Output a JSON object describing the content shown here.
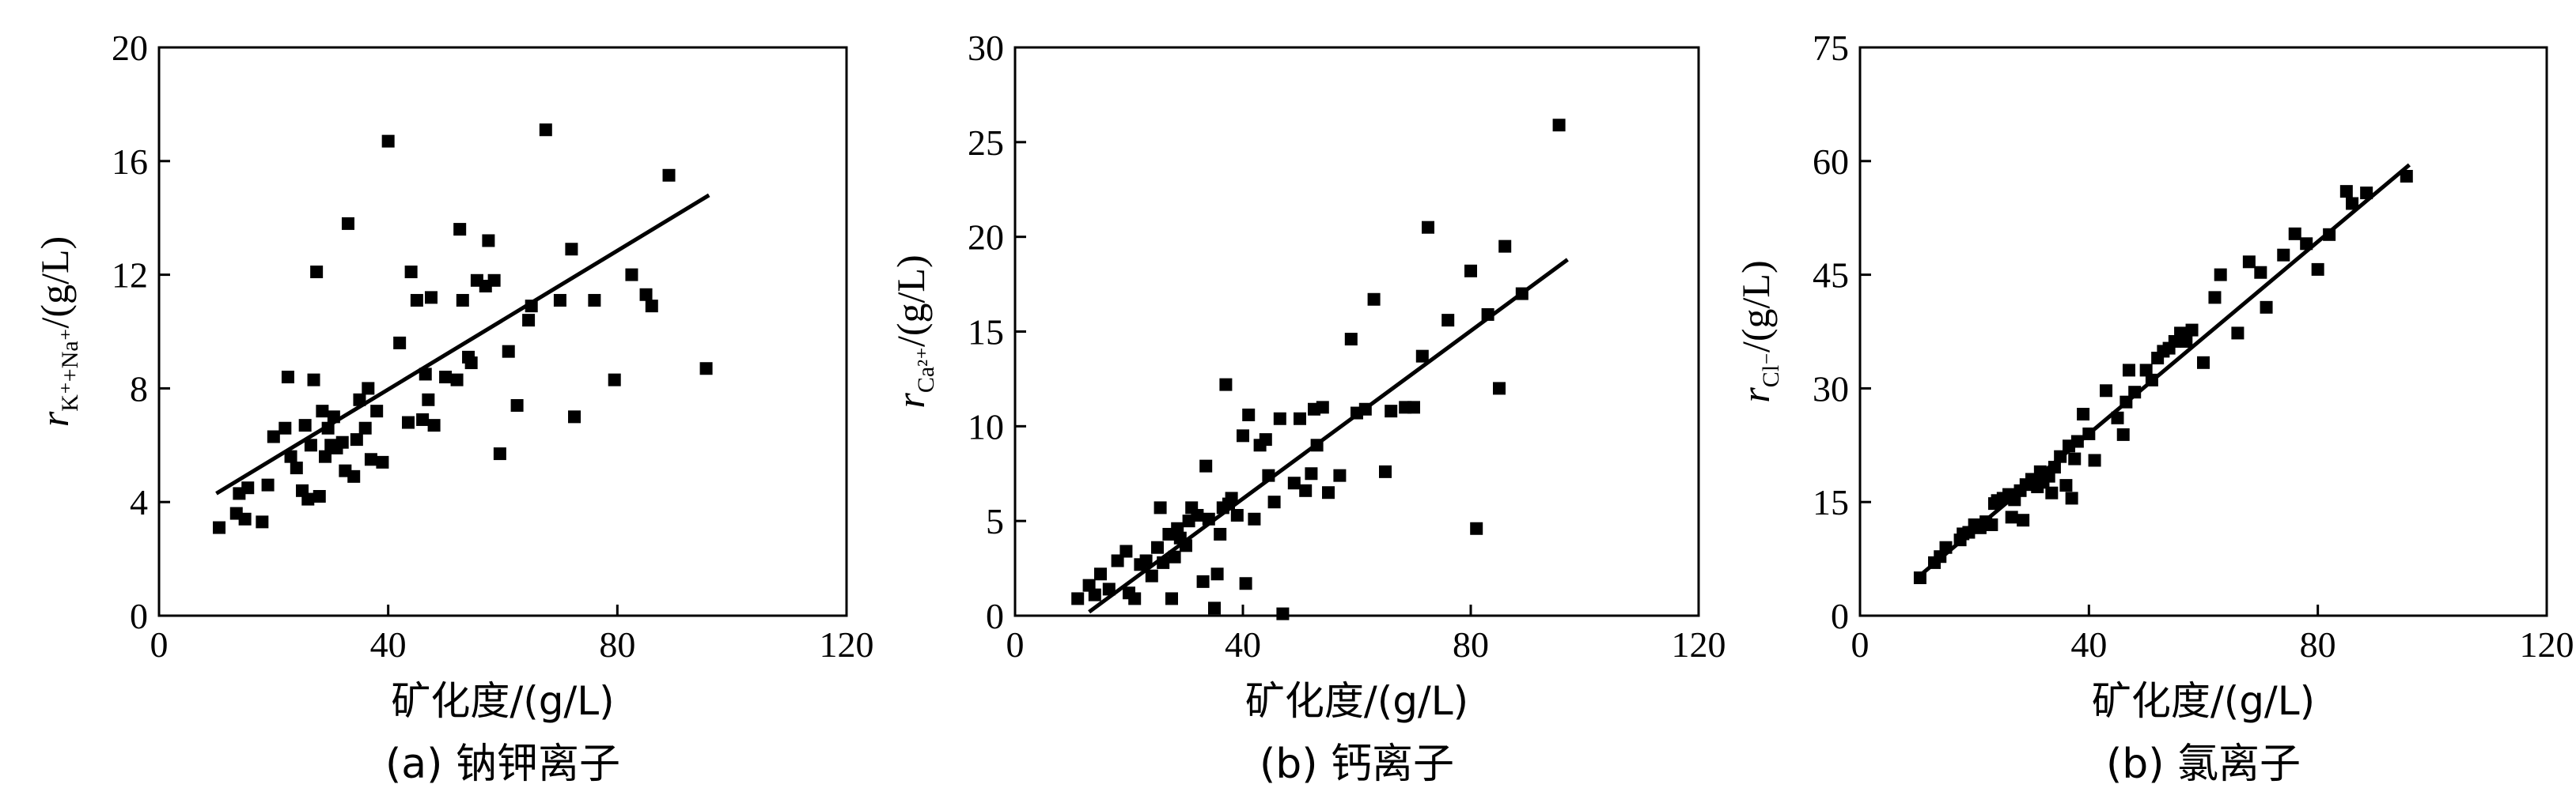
{
  "chart_data": [
    {
      "type": "scatter",
      "title": "",
      "caption": "(a) 钠钾离子",
      "xlabel": "矿化度/(g/L)",
      "ylabel": {
        "italic": "r",
        "subscript": "K⁺+Na⁺",
        "suffix": "/(g/L)"
      },
      "xlim": [
        0,
        120
      ],
      "ylim": [
        0,
        20
      ],
      "xticks": [
        "0",
        "40",
        "80",
        "120"
      ],
      "yticks": [
        "0",
        "4",
        "8",
        "12",
        "16",
        "20"
      ],
      "fit_line": [
        [
          10,
          4.3
        ],
        [
          96,
          14.8
        ]
      ],
      "points": [
        [
          10.5,
          3.1
        ],
        [
          13.5,
          3.6
        ],
        [
          14,
          4.3
        ],
        [
          15,
          3.4
        ],
        [
          15.5,
          4.5
        ],
        [
          18,
          3.3
        ],
        [
          19,
          4.6
        ],
        [
          20,
          6.3
        ],
        [
          22,
          6.6
        ],
        [
          22.5,
          8.4
        ],
        [
          23,
          5.6
        ],
        [
          24,
          5.2
        ],
        [
          25,
          4.4
        ],
        [
          25.5,
          6.7
        ],
        [
          26,
          4.1
        ],
        [
          26.5,
          6.0
        ],
        [
          27,
          8.3
        ],
        [
          27.5,
          12.1
        ],
        [
          28,
          4.2
        ],
        [
          28.5,
          7.2
        ],
        [
          29,
          5.6
        ],
        [
          29.5,
          6.6
        ],
        [
          30,
          6.0
        ],
        [
          30.5,
          7.0
        ],
        [
          31,
          5.9
        ],
        [
          32,
          6.1
        ],
        [
          32.5,
          5.1
        ],
        [
          33,
          13.8
        ],
        [
          34,
          4.9
        ],
        [
          34.5,
          6.2
        ],
        [
          35,
          7.6
        ],
        [
          36,
          6.6
        ],
        [
          36.5,
          8.0
        ],
        [
          37,
          5.5
        ],
        [
          38,
          7.2
        ],
        [
          39,
          5.4
        ],
        [
          40,
          16.7
        ],
        [
          42,
          9.6
        ],
        [
          43.5,
          6.8
        ],
        [
          44,
          12.1
        ],
        [
          45,
          11.1
        ],
        [
          46,
          6.9
        ],
        [
          46.5,
          8.5
        ],
        [
          47,
          7.6
        ],
        [
          47.5,
          11.2
        ],
        [
          48,
          6.7
        ],
        [
          50,
          8.4
        ],
        [
          52,
          8.3
        ],
        [
          52.5,
          13.6
        ],
        [
          53,
          11.1
        ],
        [
          54,
          9.1
        ],
        [
          54.5,
          8.9
        ],
        [
          55.5,
          11.8
        ],
        [
          57,
          11.6
        ],
        [
          57.5,
          13.2
        ],
        [
          58.5,
          11.8
        ],
        [
          59.5,
          5.7
        ],
        [
          61,
          9.3
        ],
        [
          62.5,
          7.4
        ],
        [
          64.5,
          10.4
        ],
        [
          65,
          10.9
        ],
        [
          67.5,
          17.1
        ],
        [
          70,
          11.1
        ],
        [
          72,
          12.9
        ],
        [
          72.5,
          7.0
        ],
        [
          76,
          11.1
        ],
        [
          79.5,
          8.3
        ],
        [
          82.5,
          12.0
        ],
        [
          85,
          11.3
        ],
        [
          86,
          10.9
        ],
        [
          89,
          15.5
        ],
        [
          95.5,
          8.7
        ]
      ]
    },
    {
      "type": "scatter",
      "title": "",
      "caption": "(b) 钙离子",
      "xlabel": "矿化度/(g/L)",
      "ylabel": {
        "italic": "r",
        "subscript": "Ca²⁺",
        "suffix": "/(g/L)"
      },
      "xlim": [
        0,
        120
      ],
      "ylim": [
        0,
        30
      ],
      "xticks": [
        "0",
        "40",
        "80",
        "120"
      ],
      "yticks": [
        "0",
        "5",
        "10",
        "15",
        "20",
        "25",
        "30"
      ],
      "fit_line": [
        [
          13,
          0.2
        ],
        [
          97,
          18.8
        ]
      ],
      "points": [
        [
          11,
          0.9
        ],
        [
          13,
          1.6
        ],
        [
          14,
          1.1
        ],
        [
          15,
          2.2
        ],
        [
          16.5,
          1.4
        ],
        [
          18,
          2.9
        ],
        [
          19.5,
          3.4
        ],
        [
          20,
          1.2
        ],
        [
          21,
          0.9
        ],
        [
          22,
          2.7
        ],
        [
          23,
          2.9
        ],
        [
          24,
          2.1
        ],
        [
          25,
          3.6
        ],
        [
          25.5,
          5.7
        ],
        [
          26,
          2.8
        ],
        [
          27,
          4.3
        ],
        [
          27.5,
          0.9
        ],
        [
          28,
          3.1
        ],
        [
          28.5,
          4.6
        ],
        [
          29,
          4.1
        ],
        [
          30,
          3.7
        ],
        [
          30.5,
          5.0
        ],
        [
          31,
          5.7
        ],
        [
          32,
          5.3
        ],
        [
          33,
          1.8
        ],
        [
          33.5,
          7.9
        ],
        [
          34,
          5.1
        ],
        [
          35,
          0.4
        ],
        [
          35.5,
          2.2
        ],
        [
          36,
          4.3
        ],
        [
          36.5,
          5.7
        ],
        [
          37,
          12.2
        ],
        [
          37.5,
          5.9
        ],
        [
          38,
          6.2
        ],
        [
          39,
          5.3
        ],
        [
          40,
          9.5
        ],
        [
          40.5,
          1.7
        ],
        [
          41,
          10.6
        ],
        [
          42,
          5.1
        ],
        [
          43,
          9.0
        ],
        [
          44,
          9.3
        ],
        [
          44.5,
          7.4
        ],
        [
          45.5,
          6.0
        ],
        [
          46.5,
          10.4
        ],
        [
          47,
          0.1
        ],
        [
          49,
          7.0
        ],
        [
          50,
          10.4
        ],
        [
          51,
          6.6
        ],
        [
          52,
          7.5
        ],
        [
          52.5,
          10.9
        ],
        [
          53,
          9.0
        ],
        [
          54,
          11.0
        ],
        [
          55,
          6.5
        ],
        [
          57,
          7.4
        ],
        [
          59,
          14.6
        ],
        [
          60,
          10.7
        ],
        [
          61.5,
          10.9
        ],
        [
          63,
          16.7
        ],
        [
          65,
          7.6
        ],
        [
          66,
          10.8
        ],
        [
          68.5,
          11.0
        ],
        [
          70,
          11.0
        ],
        [
          71.5,
          13.7
        ],
        [
          72.5,
          20.5
        ],
        [
          76,
          15.6
        ],
        [
          80,
          18.2
        ],
        [
          81,
          4.6
        ],
        [
          83,
          15.9
        ],
        [
          85,
          12.0
        ],
        [
          86,
          19.5
        ],
        [
          89,
          17.0
        ],
        [
          95.5,
          25.9
        ]
      ]
    },
    {
      "type": "scatter",
      "title": "",
      "caption": "(b) 氯离子",
      "xlabel": "矿化度/(g/L)",
      "ylabel": {
        "italic": "r",
        "subscript": "Cl⁻",
        "suffix": "/(g/L)"
      },
      "xlim": [
        0,
        120
      ],
      "ylim": [
        0,
        75
      ],
      "xticks": [
        "0",
        "40",
        "80",
        "120"
      ],
      "yticks": [
        "0",
        "15",
        "30",
        "45",
        "60",
        "75"
      ],
      "fit_line": [
        [
          10,
          5.0
        ],
        [
          96,
          59.5
        ]
      ],
      "points": [
        [
          10.5,
          5.0
        ],
        [
          13,
          7.0
        ],
        [
          14,
          7.8
        ],
        [
          15,
          9.0
        ],
        [
          17.5,
          10.0
        ],
        [
          18,
          10.8
        ],
        [
          19,
          11.0
        ],
        [
          20,
          12.0
        ],
        [
          21,
          11.6
        ],
        [
          22,
          12.4
        ],
        [
          23,
          12.0
        ],
        [
          23.5,
          14.8
        ],
        [
          24,
          15.2
        ],
        [
          25,
          15.5
        ],
        [
          26,
          16.0
        ],
        [
          26.5,
          13.0
        ],
        [
          27,
          15.3
        ],
        [
          28,
          16.5
        ],
        [
          28.5,
          12.6
        ],
        [
          29,
          17.3
        ],
        [
          30,
          18.0
        ],
        [
          31,
          17.0
        ],
        [
          31.5,
          19.0
        ],
        [
          32,
          17.6
        ],
        [
          33,
          18.4
        ],
        [
          33.5,
          16.2
        ],
        [
          34,
          19.6
        ],
        [
          35,
          21.0
        ],
        [
          36,
          17.2
        ],
        [
          36.5,
          22.4
        ],
        [
          37,
          15.5
        ],
        [
          37.5,
          20.7
        ],
        [
          38,
          23.0
        ],
        [
          39,
          26.6
        ],
        [
          40,
          24.0
        ],
        [
          41,
          20.5
        ],
        [
          43,
          29.7
        ],
        [
          45,
          26.1
        ],
        [
          46,
          23.9
        ],
        [
          46.5,
          28.2
        ],
        [
          47,
          32.4
        ],
        [
          48,
          29.5
        ],
        [
          50,
          32.4
        ],
        [
          51,
          31.1
        ],
        [
          52,
          34.0
        ],
        [
          53,
          34.9
        ],
        [
          54,
          35.3
        ],
        [
          55,
          36.2
        ],
        [
          56,
          37.3
        ],
        [
          57,
          36.2
        ],
        [
          58,
          37.7
        ],
        [
          60,
          33.4
        ],
        [
          62,
          42.0
        ],
        [
          63,
          45.0
        ],
        [
          66,
          37.3
        ],
        [
          68,
          46.7
        ],
        [
          70,
          45.3
        ],
        [
          71,
          40.7
        ],
        [
          74,
          47.6
        ],
        [
          76,
          50.4
        ],
        [
          78,
          49.1
        ],
        [
          80,
          45.7
        ],
        [
          82,
          50.3
        ],
        [
          85,
          56.0
        ],
        [
          86,
          54.4
        ],
        [
          88.5,
          55.8
        ],
        [
          95.5,
          58.0
        ]
      ]
    }
  ]
}
